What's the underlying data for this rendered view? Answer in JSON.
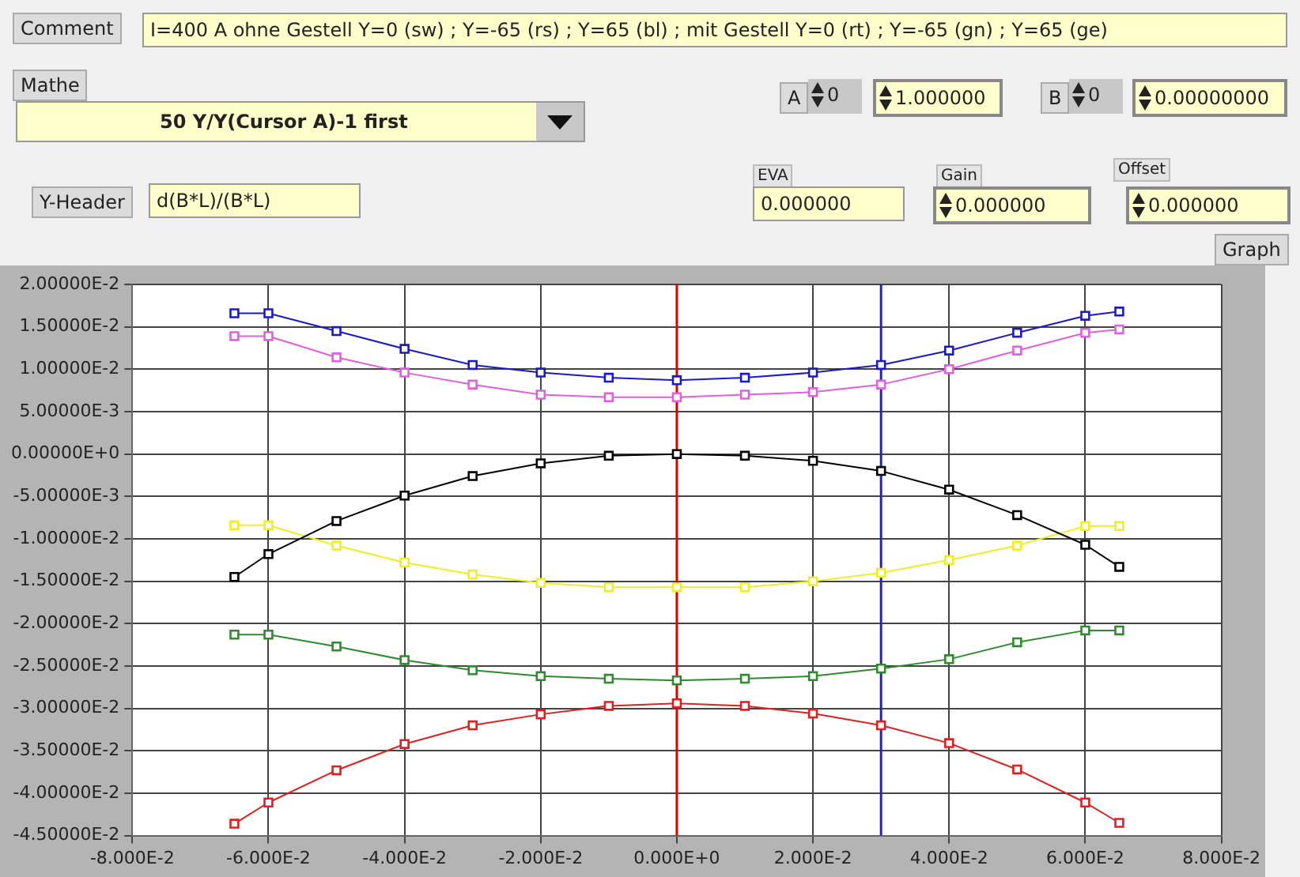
{
  "chart_data": {
    "type": "line",
    "annotations": [
      "Comment",
      "I=400 A ohne Gestell Y=0 (sw) ; Y=-65 (rs) ; Y=65 (bl) ; mit Gestell Y=0 (rt) ; Y=-65 (gn) ; Y=65 (ge)",
      "Mathe",
      "50 Y/Y(Cursor A)-1 first",
      "A",
      "0",
      "1.000000",
      "B",
      "0",
      "0.00000000",
      "EVA",
      "0.000000",
      "Gain",
      "0.000000",
      "Offset",
      "0.000000",
      "Y-Header",
      "d(B*L)/(B*L)",
      "Graph"
    ],
    "x": [
      -0.065,
      -0.06,
      -0.05,
      -0.04,
      -0.03,
      -0.02,
      -0.01,
      0,
      0.01,
      0.02,
      0.03,
      0.04,
      0.05,
      0.06,
      0.065
    ],
    "series": [
      {
        "color": "#1a1acc",
        "values": [
          0.0166,
          0.0166,
          0.0145,
          0.0124,
          0.0105,
          0.0096,
          0.009,
          0.0087,
          0.009,
          0.0096,
          0.0105,
          0.0122,
          0.0143,
          0.0163,
          0.0168
        ]
      },
      {
        "color": "#e060e0",
        "values": [
          0.0139,
          0.0139,
          0.0114,
          0.0096,
          0.0082,
          0.007,
          0.0067,
          0.0067,
          0.007,
          0.0073,
          0.0082,
          0.01,
          0.0122,
          0.0143,
          0.0147
        ]
      },
      {
        "color": "#000000",
        "values": [
          -0.0145,
          -0.0118,
          -0.0079,
          -0.0049,
          -0.0026,
          -0.0011,
          -0.0002,
          0,
          -0.0002,
          -0.0008,
          -0.002,
          -0.0042,
          -0.0072,
          -0.0107,
          -0.0133
        ]
      },
      {
        "color": "#f0f020",
        "values": [
          -0.0084,
          -0.0084,
          -0.0108,
          -0.0128,
          -0.0142,
          -0.0152,
          -0.0157,
          -0.0157,
          -0.0157,
          -0.015,
          -0.014,
          -0.0125,
          -0.0108,
          -0.0085,
          -0.0085
        ]
      },
      {
        "color": "#2e8b2e",
        "values": [
          -0.0213,
          -0.0213,
          -0.0227,
          -0.0243,
          -0.0255,
          -0.0262,
          -0.0265,
          -0.0267,
          -0.0265,
          -0.0262,
          -0.0253,
          -0.0242,
          -0.0222,
          -0.0208,
          -0.0208
        ]
      },
      {
        "color": "#e02020",
        "values": [
          -0.0436,
          -0.0411,
          -0.0373,
          -0.0342,
          -0.032,
          -0.0307,
          -0.0297,
          -0.0294,
          -0.0297,
          -0.0306,
          -0.032,
          -0.0341,
          -0.0372,
          -0.0411,
          -0.0435
        ]
      }
    ],
    "xlim": [
      -0.08,
      0.08
    ],
    "xticks": [
      {
        "value": -0.08,
        "label": "-8.000E-2"
      },
      {
        "value": -0.06,
        "label": "-6.000E-2"
      },
      {
        "value": -0.04,
        "label": "-4.000E-2"
      },
      {
        "value": -0.02,
        "label": "-2.000E-2"
      },
      {
        "value": 0,
        "label": "0.000E+0"
      },
      {
        "value": 0.02,
        "label": "2.000E-2"
      },
      {
        "value": 0.04,
        "label": "4.000E-2"
      },
      {
        "value": 0.06,
        "label": "6.000E-2"
      },
      {
        "value": 0.08,
        "label": "8.000E-2"
      }
    ],
    "ylim": [
      -0.045,
      0.02
    ],
    "yticks": [
      {
        "value": 0.02,
        "label": "2.00000E-2"
      },
      {
        "value": 0.015,
        "label": "1.50000E-2"
      },
      {
        "value": 0.01,
        "label": "1.00000E-2"
      },
      {
        "value": 0.005,
        "label": "5.00000E-3"
      },
      {
        "value": 0,
        "label": "0.00000E+0"
      },
      {
        "value": -0.005,
        "label": "-5.00000E-3"
      },
      {
        "value": -0.01,
        "label": "-1.00000E-2"
      },
      {
        "value": -0.015,
        "label": "-1.50000E-2"
      },
      {
        "value": -0.02,
        "label": "-2.00000E-2"
      },
      {
        "value": -0.025,
        "label": "-2.50000E-2"
      },
      {
        "value": -0.03,
        "label": "-3.00000E-2"
      },
      {
        "value": -0.035,
        "label": "-3.50000E-2"
      },
      {
        "value": -0.04,
        "label": "-4.00000E-2"
      },
      {
        "value": -0.045,
        "label": "-4.50000E-2"
      }
    ],
    "ref_lines": [
      {
        "axis": "x",
        "value": 0,
        "color": "#e00000"
      },
      {
        "axis": "x",
        "value": 0.03,
        "color": "#2020d0"
      }
    ],
    "grid": true,
    "legend": false,
    "marker": "square",
    "line_style": "solid"
  }
}
